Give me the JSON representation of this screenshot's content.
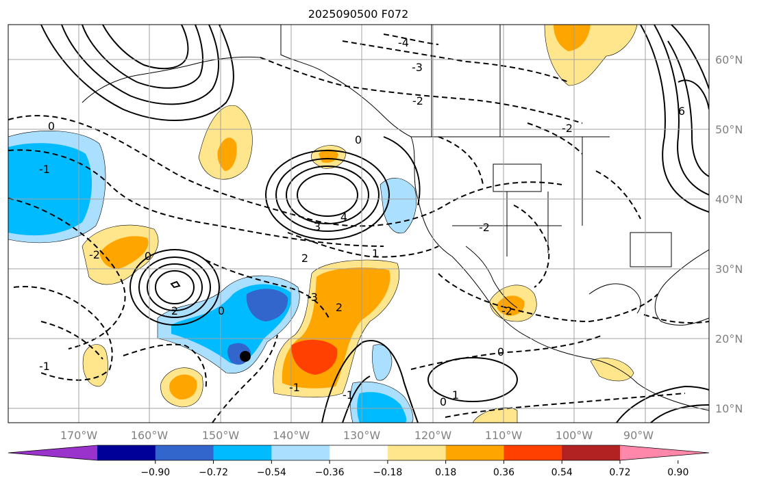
{
  "title": "2025090500 F072",
  "lon_labels": [
    "170°W",
    "160°W",
    "150°W",
    "140°W",
    "130°W",
    "120°W",
    "110°W",
    "100°W",
    "90°W"
  ],
  "lat_labels": [
    "60°N",
    "50°N",
    "40°N",
    "30°N",
    "20°N",
    "10°N"
  ],
  "colorbar": {
    "colors": [
      "#9933cc",
      "#000099",
      "#3366cc",
      "#00bbff",
      "#aadfff",
      "#ffffff",
      "#ffe68c",
      "#ffa500",
      "#ff4000",
      "#b22222",
      "#ff88aa"
    ],
    "ticks": [
      "−0.90",
      "−0.72",
      "−0.54",
      "−0.36",
      "−0.18",
      "0.18",
      "0.36",
      "0.54",
      "0.72",
      "0.90"
    ]
  },
  "contour_labels": [
    "-4",
    "-3",
    "-2",
    "0",
    "-1",
    "1",
    "2",
    "3",
    "4",
    "6",
    "0",
    "-2",
    "-1",
    "-2",
    "2",
    "0",
    "-3",
    "-2",
    "2",
    "0",
    "-1",
    "0",
    "1",
    "0",
    "-2",
    "-1"
  ],
  "marker": {
    "shape": "filled-circle",
    "color": "#000000"
  }
}
